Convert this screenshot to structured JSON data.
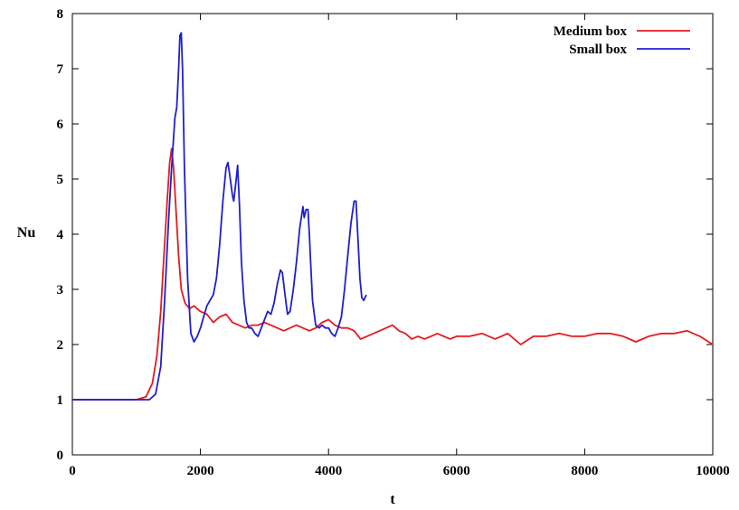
{
  "chart_data": {
    "type": "line",
    "title": "",
    "xlabel": "t",
    "ylabel": "Nu",
    "xlim": [
      0,
      10000
    ],
    "ylim": [
      0,
      8
    ],
    "xticks": [
      0,
      2000,
      4000,
      6000,
      8000,
      10000
    ],
    "yticks": [
      0,
      1,
      2,
      3,
      4,
      5,
      6,
      7,
      8
    ],
    "grid": false,
    "legend_position": "top-right",
    "series": [
      {
        "name": "Medium box",
        "color": "#e41a1c",
        "x": [
          0,
          600,
          1000,
          1150,
          1250,
          1320,
          1380,
          1430,
          1480,
          1520,
          1550,
          1580,
          1620,
          1660,
          1700,
          1760,
          1830,
          1900,
          2000,
          2100,
          2200,
          2300,
          2400,
          2500,
          2600,
          2700,
          2800,
          2900,
          3000,
          3100,
          3200,
          3300,
          3400,
          3500,
          3600,
          3700,
          3800,
          3900,
          4000,
          4100,
          4200,
          4300,
          4400,
          4500,
          4600,
          4700,
          4800,
          4900,
          5000,
          5100,
          5200,
          5300,
          5400,
          5500,
          5600,
          5700,
          5800,
          5900,
          6000,
          6200,
          6400,
          6600,
          6800,
          7000,
          7200,
          7400,
          7600,
          7800,
          8000,
          8200,
          8400,
          8600,
          8800,
          9000,
          9200,
          9400,
          9600,
          9800,
          10000
        ],
        "y": [
          1.0,
          1.0,
          1.0,
          1.05,
          1.3,
          1.8,
          2.6,
          3.6,
          4.6,
          5.3,
          5.55,
          5.2,
          4.4,
          3.6,
          3.0,
          2.75,
          2.65,
          2.7,
          2.6,
          2.55,
          2.4,
          2.5,
          2.55,
          2.4,
          2.35,
          2.3,
          2.35,
          2.35,
          2.4,
          2.35,
          2.3,
          2.25,
          2.3,
          2.35,
          2.3,
          2.25,
          2.3,
          2.4,
          2.45,
          2.35,
          2.3,
          2.3,
          2.25,
          2.1,
          2.15,
          2.2,
          2.25,
          2.3,
          2.35,
          2.25,
          2.2,
          2.1,
          2.15,
          2.1,
          2.15,
          2.2,
          2.15,
          2.1,
          2.15,
          2.15,
          2.2,
          2.1,
          2.2,
          2.0,
          2.15,
          2.15,
          2.2,
          2.15,
          2.15,
          2.2,
          2.2,
          2.15,
          2.05,
          2.15,
          2.2,
          2.2,
          2.25,
          2.15,
          2.0
        ]
      },
      {
        "name": "Small box",
        "color": "#1f1fd0",
        "x": [
          0,
          600,
          1000,
          1200,
          1300,
          1380,
          1440,
          1500,
          1550,
          1600,
          1630,
          1660,
          1680,
          1700,
          1720,
          1750,
          1800,
          1850,
          1900,
          1950,
          2000,
          2050,
          2100,
          2150,
          2200,
          2250,
          2300,
          2350,
          2400,
          2430,
          2460,
          2500,
          2520,
          2560,
          2580,
          2610,
          2640,
          2680,
          2720,
          2760,
          2800,
          2850,
          2900,
          2950,
          3000,
          3050,
          3100,
          3150,
          3200,
          3250,
          3280,
          3320,
          3360,
          3400,
          3450,
          3500,
          3550,
          3600,
          3620,
          3650,
          3680,
          3700,
          3720,
          3750,
          3800,
          3850,
          3900,
          3950,
          4000,
          4050,
          4100,
          4150,
          4200,
          4250,
          4300,
          4350,
          4400,
          4430,
          4460,
          4490,
          4520,
          4550,
          4570,
          4590
        ],
        "y": [
          1.0,
          1.0,
          1.0,
          1.0,
          1.1,
          1.6,
          2.8,
          4.2,
          5.2,
          6.1,
          6.3,
          7.0,
          7.6,
          7.65,
          7.0,
          5.2,
          3.2,
          2.2,
          2.05,
          2.15,
          2.3,
          2.5,
          2.7,
          2.8,
          2.9,
          3.2,
          3.8,
          4.6,
          5.2,
          5.3,
          5.05,
          4.7,
          4.6,
          5.0,
          5.25,
          4.5,
          3.5,
          2.8,
          2.4,
          2.3,
          2.3,
          2.2,
          2.15,
          2.3,
          2.45,
          2.6,
          2.55,
          2.75,
          3.1,
          3.35,
          3.3,
          2.9,
          2.55,
          2.6,
          3.0,
          3.5,
          4.1,
          4.5,
          4.3,
          4.45,
          4.45,
          4.0,
          3.5,
          2.8,
          2.35,
          2.3,
          2.35,
          2.3,
          2.3,
          2.2,
          2.15,
          2.3,
          2.5,
          3.0,
          3.6,
          4.2,
          4.6,
          4.6,
          3.9,
          3.2,
          2.85,
          2.8,
          2.85,
          2.9
        ]
      }
    ]
  }
}
